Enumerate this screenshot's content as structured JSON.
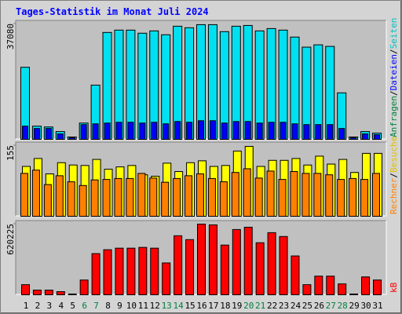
{
  "chart_data": [
    {
      "type": "bar",
      "title": "Tages-Statistik im Monat Juli 2024",
      "legend_separator": "/",
      "ylim": [
        0,
        37080
      ],
      "yticks": [
        37080
      ],
      "legend": [
        {
          "name": "Anfragen",
          "color": "#008040"
        },
        {
          "name": "Dateien",
          "color": "#0000ff"
        },
        {
          "name": "Seiten",
          "color": "#00c0c0"
        }
      ],
      "series": [
        {
          "color": "#00e0f0",
          "values": [
            22840,
            4180,
            3930,
            2460,
            740,
            5160,
            17190,
            33890,
            34630,
            34630,
            33650,
            34380,
            33160,
            35860,
            35370,
            36350,
            36350,
            34140,
            35860,
            36100,
            34380,
            35120,
            34630,
            32420,
            29230,
            29960,
            29470,
            14740,
            740,
            2460,
            1960
          ]
        },
        {
          "color": "#0000ff",
          "values": [
            4180,
            3440,
            3440,
            1720,
            490,
            4670,
            4920,
            5160,
            5410,
            5410,
            5160,
            5410,
            4920,
            5650,
            5410,
            5900,
            5900,
            5160,
            5650,
            5650,
            5160,
            5410,
            5410,
            4920,
            4670,
            4670,
            4670,
            3440,
            490,
            1720,
            1470
          ]
        }
      ]
    },
    {
      "type": "bar",
      "ylim": [
        0,
        155
      ],
      "yticks": [
        155
      ],
      "legend": [
        {
          "name": "Rechner",
          "color": "#ff8000"
        },
        {
          "name": "Besuche",
          "color": "#e0c000"
        }
      ],
      "series": [
        {
          "color": "#ffff00",
          "values": [
            107,
            124,
            91,
            115,
            110,
            109,
            122,
            101,
            106,
            109,
            89,
            86,
            114,
            96,
            115,
            119,
            107,
            109,
            140,
            150,
            107,
            120,
            120,
            124,
            110,
            129,
            112,
            122,
            94,
            135,
            135
          ]
        },
        {
          "color": "#ff8000",
          "values": [
            92,
            99,
            68,
            87,
            74,
            66,
            78,
            79,
            81,
            81,
            92,
            82,
            73,
            81,
            87,
            91,
            81,
            74,
            94,
            102,
            82,
            97,
            79,
            96,
            92,
            92,
            89,
            79,
            81,
            79,
            92
          ]
        }
      ]
    },
    {
      "type": "bar",
      "ylim": [
        0,
        620225
      ],
      "yticks": [
        620225
      ],
      "legend": [
        {
          "name": "kB",
          "color": "#ff0000"
        }
      ],
      "categories": [
        "1",
        "2",
        "3",
        "4",
        "5",
        "6",
        "7",
        "8",
        "9",
        "10",
        "11",
        "12",
        "13",
        "14",
        "15",
        "16",
        "17",
        "18",
        "19",
        "20",
        "21",
        "22",
        "23",
        "24",
        "25",
        "26",
        "27",
        "28",
        "29",
        "30",
        "31"
      ],
      "weekend": [
        6,
        7,
        13,
        14,
        20,
        21,
        27,
        28
      ],
      "weekend_color": "#008040",
      "series": [
        {
          "color": "#ff0000",
          "values": [
            86700,
            40000,
            40000,
            26700,
            6700,
            126700,
            353500,
            386800,
            400100,
            400100,
            406800,
            400100,
            273400,
            506800,
            473500,
            606900,
            600200,
            426800,
            560200,
            580200,
            446800,
            533500,
            500200,
            333400,
            86700,
            160000,
            160000,
            93400,
            6700,
            153400,
            126700
          ]
        }
      ]
    }
  ]
}
